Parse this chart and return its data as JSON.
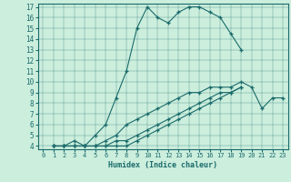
{
  "title": "",
  "xlabel": "Humidex (Indice chaleur)",
  "bg_color": "#cceedd",
  "line_color": "#1a6b6b",
  "xlim": [
    -0.5,
    23.5
  ],
  "ylim": [
    3.7,
    17.3
  ],
  "xticks": [
    0,
    1,
    2,
    3,
    4,
    5,
    6,
    7,
    8,
    9,
    10,
    11,
    12,
    13,
    14,
    15,
    16,
    17,
    18,
    19,
    20,
    21,
    22,
    23
  ],
  "yticks": [
    4,
    5,
    6,
    7,
    8,
    9,
    10,
    11,
    12,
    13,
    14,
    15,
    16,
    17
  ],
  "series": [
    {
      "x": [
        1,
        2,
        3,
        4,
        5,
        6,
        7,
        8,
        9,
        10,
        11,
        12,
        13,
        14,
        15,
        16,
        17,
        18,
        19
      ],
      "y": [
        4,
        4,
        4,
        4,
        5,
        6,
        8.5,
        11,
        15,
        17,
        16,
        15.5,
        16.5,
        17,
        17,
        16.5,
        16,
        14.5,
        13
      ]
    },
    {
      "x": [
        1,
        2,
        3,
        4,
        5,
        6,
        7,
        8,
        9,
        10,
        11,
        12,
        13,
        14,
        15,
        16,
        17,
        18,
        19,
        20,
        21,
        22,
        23
      ],
      "y": [
        4,
        4,
        4.5,
        4,
        4,
        4.5,
        5,
        6,
        6.5,
        7,
        7.5,
        8,
        8.5,
        9,
        9,
        9.5,
        9.5,
        9.5,
        10,
        9.5,
        7.5,
        8.5,
        8.5
      ]
    },
    {
      "x": [
        1,
        2,
        3,
        4,
        5,
        6,
        7,
        8,
        9,
        10,
        11,
        12,
        13,
        14,
        15,
        16,
        17,
        18,
        19
      ],
      "y": [
        4,
        4,
        4,
        4,
        4,
        4,
        4.5,
        4.5,
        5,
        5.5,
        6,
        6.5,
        7,
        7.5,
        8,
        8.5,
        9,
        9,
        9.5
      ]
    },
    {
      "x": [
        1,
        2,
        3,
        4,
        5,
        6,
        7,
        8,
        9,
        10,
        11,
        12,
        13,
        14,
        15,
        16,
        17,
        18,
        19
      ],
      "y": [
        4,
        4,
        4,
        4,
        4,
        4,
        4,
        4,
        4.5,
        5,
        5.5,
        6,
        6.5,
        7,
        7.5,
        8,
        8.5,
        9,
        9.5
      ]
    }
  ]
}
